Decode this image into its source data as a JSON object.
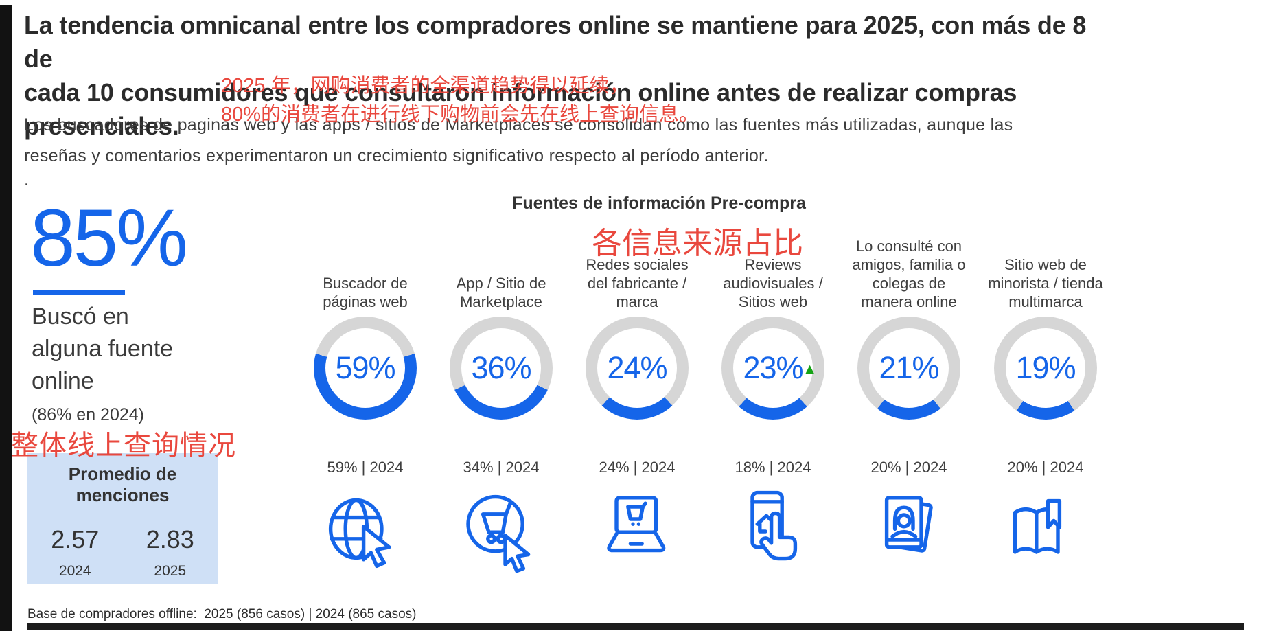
{
  "colors": {
    "accent_blue": "#1565e9",
    "annotation_red": "#e9483e",
    "ring_gray": "#d6d6d6",
    "box_blue": "#cfe0f6",
    "delta_green": "#15a315"
  },
  "title_lines": [
    "La tendencia omnicanal entre los compradores online se mantiene para 2025, con más de 8 de",
    "cada 10 consumidores que consultaron información online antes de realizar compras",
    "presenciales."
  ],
  "body_lines": [
    "Los buscadores de paginas web y las apps / sitios de Marketplaces se consolidan como las fuentes más utilizadas, aunque las",
    "reseñas y comentarios experimentaron un crecimiento significativo respecto al período anterior."
  ],
  "dot": ".",
  "annotations_zh": {
    "headline_lines": [
      "2025 年，网购消费者的全渠道趋势得以延续，",
      "80%的消费者在进行线下购物前会先在线上查询信息。"
    ],
    "chart_label": "各信息来源占比",
    "stat_label": "整体线上查询情况"
  },
  "stat": {
    "value": "85%",
    "label": "Buscó en alguna fuente online",
    "previous": "(86% en 2024)"
  },
  "promedio": {
    "title": "Promedio de menciones",
    "entries": [
      {
        "value": "2.57",
        "year": "2024",
        "highlight": false
      },
      {
        "value": "2.83",
        "year": "2025",
        "highlight": true
      }
    ]
  },
  "chart_title": "Fuentes de información Pre-compra",
  "delta_marker": "▲",
  "footer": "Base de compradores offline:  2025 (856 casos) | 2024 (865 casos)",
  "chart_data": {
    "type": "donut",
    "title": "Fuentes de información Pre-compra",
    "unit": "%",
    "legend": [
      "2025",
      "2024"
    ],
    "columns": [
      {
        "label_lines": [
          "Buscador de",
          "páginas web"
        ],
        "value_2025": 59,
        "value_2024": 59,
        "icon": "globe-cursor",
        "delta_up": false
      },
      {
        "label_lines": [
          "App / Sitio de",
          "Marketplace"
        ],
        "value_2025": 36,
        "value_2024": 34,
        "icon": "cart-cursor",
        "delta_up": false
      },
      {
        "label_lines": [
          "Redes sociales",
          "del fabricante /",
          "marca"
        ],
        "value_2025": 24,
        "value_2024": 24,
        "icon": "laptop-cart",
        "delta_up": false
      },
      {
        "label_lines": [
          "Reviews",
          "audiovisuales /",
          "Sitios web"
        ],
        "value_2025": 23,
        "value_2024": 18,
        "icon": "phone-tap",
        "delta_up": true
      },
      {
        "label_lines": [
          "Lo consulté con",
          "amigos, familia o",
          "colegas de",
          "manera online"
        ],
        "value_2025": 21,
        "value_2024": 20,
        "icon": "photo-contact",
        "delta_up": false
      },
      {
        "label_lines": [
          "Sitio web de",
          "minorista / tienda",
          "multimarca"
        ],
        "value_2025": 19,
        "value_2024": 20,
        "icon": "open-book",
        "delta_up": false
      }
    ],
    "comparison_format": "{value}% | 2024",
    "overall": {
      "value_2025": 85,
      "value_2024": 86,
      "label": "Buscó en alguna fuente online"
    },
    "avg_mentions": {
      "2024": 2.57,
      "2025": 2.83
    }
  }
}
